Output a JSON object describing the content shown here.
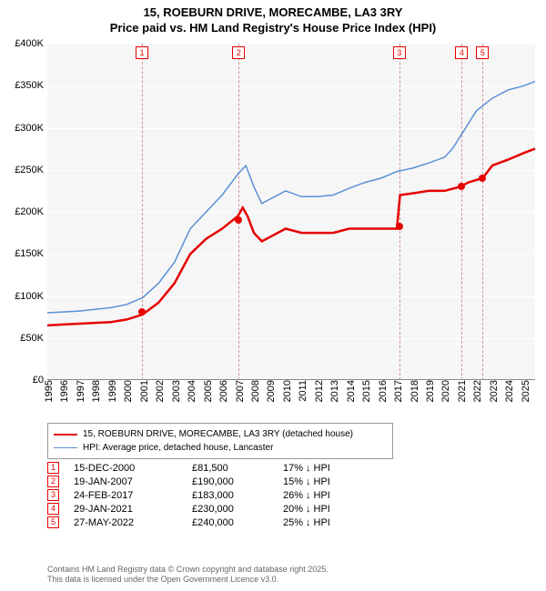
{
  "title": {
    "line1": "15, ROEBURN DRIVE, MORECAMBE, LA3 3RY",
    "line2": "Price paid vs. HM Land Registry's House Price Index (HPI)"
  },
  "chart": {
    "type": "line",
    "background_color": "#f6f6f6",
    "grid_color": "#ffffff",
    "x_range": [
      1995,
      2025.7
    ],
    "y_range": [
      0,
      400000
    ],
    "y_ticks": [
      0,
      50000,
      100000,
      150000,
      200000,
      250000,
      300000,
      350000,
      400000
    ],
    "y_tick_labels": [
      "£0",
      "£50K",
      "£100K",
      "£150K",
      "£200K",
      "£250K",
      "£300K",
      "£350K",
      "£400K"
    ],
    "x_ticks": [
      1995,
      1996,
      1997,
      1998,
      1999,
      2000,
      2001,
      2002,
      2003,
      2004,
      2005,
      2006,
      2007,
      2008,
      2009,
      2010,
      2011,
      2012,
      2013,
      2014,
      2015,
      2016,
      2017,
      2018,
      2019,
      2020,
      2021,
      2022,
      2023,
      2024,
      2025
    ],
    "x_tick_fontsize": 11,
    "y_tick_fontsize": 11,
    "series": [
      {
        "name": "price_paid",
        "label": "15, ROEBURN DRIVE, MORECAMBE, LA3 3RY (detached house)",
        "color": "#e60000",
        "line_width": 2.5,
        "points": [
          [
            1995,
            65000
          ],
          [
            1996,
            66000
          ],
          [
            1997,
            67000
          ],
          [
            1998,
            68000
          ],
          [
            1999,
            69000
          ],
          [
            2000,
            72000
          ],
          [
            2001,
            78000
          ],
          [
            2002,
            92000
          ],
          [
            2003,
            115000
          ],
          [
            2004,
            150000
          ],
          [
            2005,
            168000
          ],
          [
            2006,
            180000
          ],
          [
            2007,
            195000
          ],
          [
            2007.3,
            205000
          ],
          [
            2007.6,
            195000
          ],
          [
            2008,
            175000
          ],
          [
            2008.5,
            165000
          ],
          [
            2009,
            170000
          ],
          [
            2010,
            180000
          ],
          [
            2011,
            175000
          ],
          [
            2012,
            175000
          ],
          [
            2013,
            175000
          ],
          [
            2014,
            180000
          ],
          [
            2015,
            180000
          ],
          [
            2016,
            180000
          ],
          [
            2017,
            180000
          ],
          [
            2017.2,
            220000
          ],
          [
            2018,
            222000
          ],
          [
            2019,
            225000
          ],
          [
            2020,
            225000
          ],
          [
            2021,
            230000
          ],
          [
            2021.5,
            235000
          ],
          [
            2022,
            238000
          ],
          [
            2022.4,
            240000
          ],
          [
            2023,
            255000
          ],
          [
            2024,
            262000
          ],
          [
            2025,
            270000
          ],
          [
            2025.7,
            275000
          ]
        ]
      },
      {
        "name": "hpi",
        "label": "HPI: Average price, detached house, Lancaster",
        "color": "#5b8fd6",
        "line_width": 1.5,
        "points": [
          [
            1995,
            80000
          ],
          [
            1996,
            81000
          ],
          [
            1997,
            82000
          ],
          [
            1998,
            84000
          ],
          [
            1999,
            86000
          ],
          [
            2000,
            90000
          ],
          [
            2001,
            98000
          ],
          [
            2002,
            115000
          ],
          [
            2003,
            140000
          ],
          [
            2004,
            180000
          ],
          [
            2005,
            200000
          ],
          [
            2006,
            220000
          ],
          [
            2007,
            245000
          ],
          [
            2007.5,
            255000
          ],
          [
            2008,
            230000
          ],
          [
            2008.5,
            210000
          ],
          [
            2009,
            215000
          ],
          [
            2010,
            225000
          ],
          [
            2011,
            218000
          ],
          [
            2012,
            218000
          ],
          [
            2013,
            220000
          ],
          [
            2014,
            228000
          ],
          [
            2015,
            235000
          ],
          [
            2016,
            240000
          ],
          [
            2017,
            248000
          ],
          [
            2018,
            252000
          ],
          [
            2019,
            258000
          ],
          [
            2020,
            265000
          ],
          [
            2020.5,
            275000
          ],
          [
            2021,
            290000
          ],
          [
            2021.5,
            305000
          ],
          [
            2022,
            320000
          ],
          [
            2023,
            335000
          ],
          [
            2024,
            345000
          ],
          [
            2025,
            350000
          ],
          [
            2025.7,
            355000
          ]
        ]
      }
    ],
    "sale_points": [
      {
        "year": 2000.96,
        "price": 81500
      },
      {
        "year": 2007.05,
        "price": 190000
      },
      {
        "year": 2017.15,
        "price": 183000
      },
      {
        "year": 2021.08,
        "price": 230000
      },
      {
        "year": 2022.4,
        "price": 240000
      }
    ],
    "markers": {
      "color": "#e60000",
      "box_border": "#e60000",
      "labels": [
        "1",
        "2",
        "3",
        "4",
        "5"
      ]
    }
  },
  "legend": {
    "items": [
      {
        "color": "#e60000",
        "width": 2.5,
        "label_path": "chart.series.0.label"
      },
      {
        "color": "#5b8fd6",
        "width": 1.5,
        "label_path": "chart.series.1.label"
      }
    ]
  },
  "sales": [
    {
      "n": "1",
      "date": "15-DEC-2000",
      "price": "£81,500",
      "pct": "17%",
      "dir": "↓",
      "suffix": "HPI"
    },
    {
      "n": "2",
      "date": "19-JAN-2007",
      "price": "£190,000",
      "pct": "15%",
      "dir": "↓",
      "suffix": "HPI"
    },
    {
      "n": "3",
      "date": "24-FEB-2017",
      "price": "£183,000",
      "pct": "26%",
      "dir": "↓",
      "suffix": "HPI"
    },
    {
      "n": "4",
      "date": "29-JAN-2021",
      "price": "£230,000",
      "pct": "20%",
      "dir": "↓",
      "suffix": "HPI"
    },
    {
      "n": "5",
      "date": "27-MAY-2022",
      "price": "£240,000",
      "pct": "25%",
      "dir": "↓",
      "suffix": "HPI"
    }
  ],
  "footer": {
    "line1": "Contains HM Land Registry data © Crown copyright and database right 2025.",
    "line2": "This data is licensed under the Open Government Licence v3.0."
  }
}
